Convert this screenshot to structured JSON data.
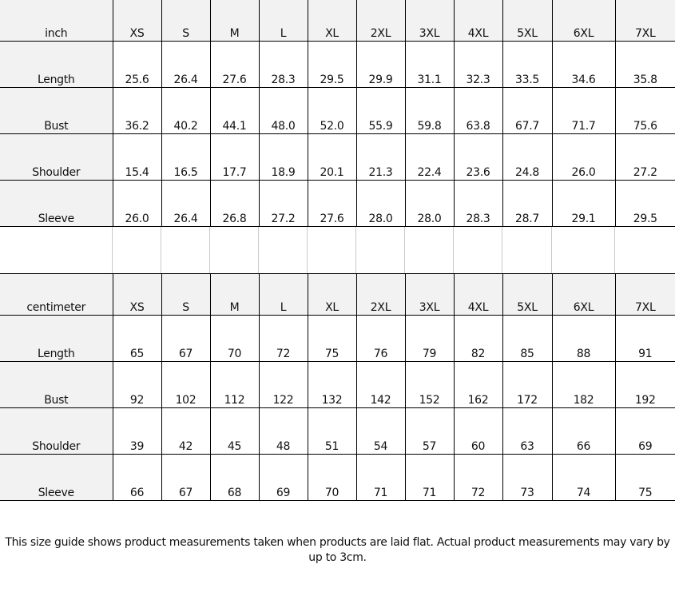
{
  "sizes": [
    "XS",
    "S",
    "M",
    "L",
    "XL",
    "2XL",
    "3XL",
    "4XL",
    "5XL",
    "6XL",
    "7XL"
  ],
  "inch_table": {
    "unit": "inch",
    "rows": [
      {
        "label": "Length",
        "values": [
          "25.6",
          "26.4",
          "27.6",
          "28.3",
          "29.5",
          "29.9",
          "31.1",
          "32.3",
          "33.5",
          "34.6",
          "35.8"
        ]
      },
      {
        "label": "Bust",
        "values": [
          "36.2",
          "40.2",
          "44.1",
          "48.0",
          "52.0",
          "55.9",
          "59.8",
          "63.8",
          "67.7",
          "71.7",
          "75.6"
        ]
      },
      {
        "label": "Shoulder",
        "values": [
          "15.4",
          "16.5",
          "17.7",
          "18.9",
          "20.1",
          "21.3",
          "22.4",
          "23.6",
          "24.8",
          "26.0",
          "27.2"
        ]
      },
      {
        "label": "Sleeve",
        "values": [
          "26.0",
          "26.4",
          "26.8",
          "27.2",
          "27.6",
          "28.0",
          "28.0",
          "28.3",
          "28.7",
          "29.1",
          "29.5"
        ]
      }
    ]
  },
  "cm_table": {
    "unit": "centimeter",
    "rows": [
      {
        "label": "Length",
        "values": [
          "65",
          "67",
          "70",
          "72",
          "75",
          "76",
          "79",
          "82",
          "85",
          "88",
          "91"
        ]
      },
      {
        "label": "Bust",
        "values": [
          "92",
          "102",
          "112",
          "122",
          "132",
          "142",
          "152",
          "162",
          "172",
          "182",
          "192"
        ]
      },
      {
        "label": "Shoulder",
        "values": [
          "39",
          "42",
          "45",
          "48",
          "51",
          "54",
          "57",
          "60",
          "63",
          "66",
          "69"
        ]
      },
      {
        "label": "Sleeve",
        "values": [
          "66",
          "67",
          "68",
          "69",
          "70",
          "71",
          "71",
          "72",
          "73",
          "74",
          "75"
        ]
      }
    ]
  },
  "note": "This size guide shows product measurements taken when products are laid flat. Actual product measurements may vary by up to 3cm."
}
